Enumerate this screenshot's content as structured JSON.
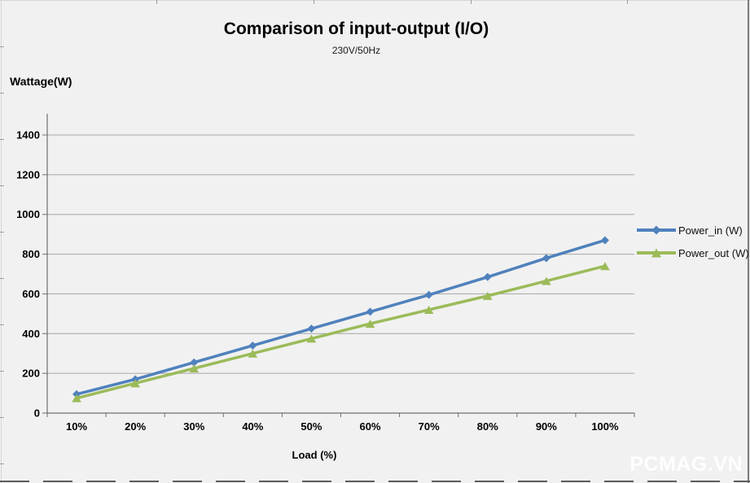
{
  "header": {
    "title": "Comparison of input-output (I/O)",
    "subtitle": "230V/50Hz"
  },
  "watermark": "PCMAG.VN",
  "colors": {
    "background": "#f1f1f1",
    "gridline": "#a6a6a6",
    "axis": "#6f6f6f",
    "power_in": "#4f81bd",
    "power_out": "#9bbb59",
    "text": "#000000"
  },
  "legend": {
    "position": "right",
    "entries": [
      {
        "label": "Power_in (W)",
        "color": "#4f81bd",
        "marker": "diamond"
      },
      {
        "label": "Power_out (W)",
        "color": "#9bbb59",
        "marker": "triangle"
      }
    ]
  },
  "chart_data": {
    "type": "line",
    "title": "Comparison of input-output (I/O)",
    "subtitle": "230V/50Hz",
    "xlabel": "Load (%)",
    "ylabel": "Wattage(W)",
    "categories": [
      "10%",
      "20%",
      "30%",
      "40%",
      "50%",
      "60%",
      "70%",
      "80%",
      "90%",
      "100%"
    ],
    "series": [
      {
        "name": "Power_in (W)",
        "color": "#4f81bd",
        "marker": "diamond",
        "values": [
          95,
          170,
          255,
          340,
          425,
          510,
          595,
          685,
          780,
          870
        ]
      },
      {
        "name": "Power_out (W)",
        "color": "#9bbb59",
        "marker": "triangle",
        "values": [
          75,
          150,
          225,
          300,
          375,
          450,
          520,
          590,
          665,
          740
        ]
      }
    ],
    "ylim": [
      0,
      1400
    ],
    "yticks": [
      0,
      200,
      400,
      600,
      800,
      1000,
      1200,
      1400
    ],
    "grid": true,
    "legend_position": "right"
  }
}
